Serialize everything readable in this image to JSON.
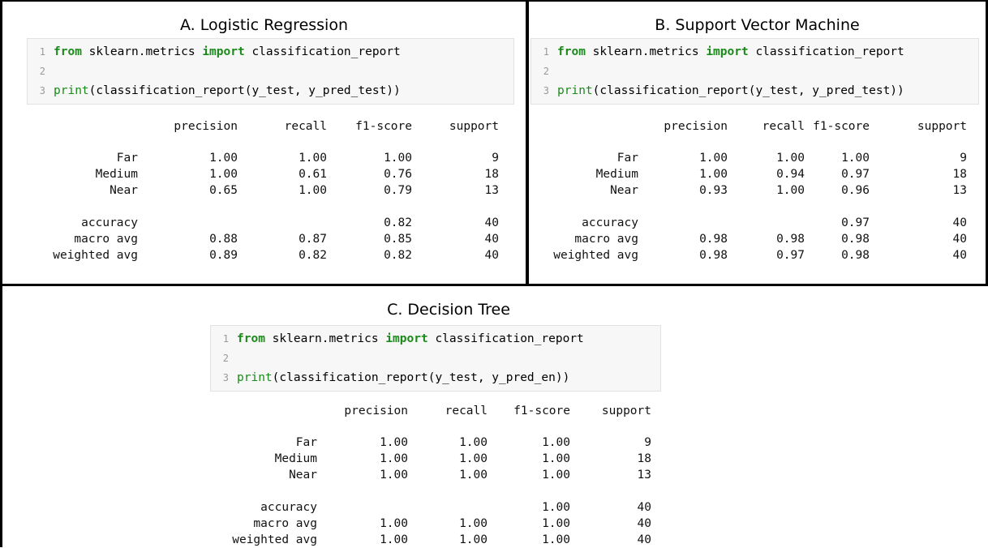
{
  "panels": [
    {
      "id": "logistic-regression",
      "title": "A. Logistic Regression",
      "code": {
        "lines": [
          {
            "num": "1",
            "parts": [
              {
                "t": "from",
                "c": "kw"
              },
              {
                "t": " sklearn.metrics ",
                "c": ""
              },
              {
                "t": "import",
                "c": "kw"
              },
              {
                "t": " classification_report",
                "c": ""
              }
            ]
          },
          {
            "num": "2",
            "parts": []
          },
          {
            "num": "3",
            "parts": [
              {
                "t": "print",
                "c": "fn"
              },
              {
                "t": "(classification_report(y_test, y_pred_test))",
                "c": ""
              }
            ]
          }
        ]
      },
      "report": {
        "headers": [
          "precision",
          "recall",
          "f1-score",
          "support"
        ],
        "rows": [
          {
            "label": "Far",
            "precision": "1.00",
            "recall": "1.00",
            "f1": "1.00",
            "support": "9"
          },
          {
            "label": "Medium",
            "precision": "1.00",
            "recall": "0.61",
            "f1": "0.76",
            "support": "18"
          },
          {
            "label": "Near",
            "precision": "0.65",
            "recall": "1.00",
            "f1": "0.79",
            "support": "13"
          },
          {
            "label": "accuracy",
            "precision": "",
            "recall": "",
            "f1": "0.82",
            "support": "40"
          },
          {
            "label": "macro avg",
            "precision": "0.88",
            "recall": "0.87",
            "f1": "0.85",
            "support": "40"
          },
          {
            "label": "weighted avg",
            "precision": "0.89",
            "recall": "0.82",
            "f1": "0.82",
            "support": "40"
          }
        ]
      }
    },
    {
      "id": "support-vector-machine",
      "title": "B. Support Vector Machine",
      "code": {
        "lines": [
          {
            "num": "1",
            "parts": [
              {
                "t": "from",
                "c": "kw"
              },
              {
                "t": " sklearn.metrics ",
                "c": ""
              },
              {
                "t": "import",
                "c": "kw"
              },
              {
                "t": " classification_report",
                "c": ""
              }
            ]
          },
          {
            "num": "2",
            "parts": []
          },
          {
            "num": "3",
            "parts": [
              {
                "t": "print",
                "c": "fn"
              },
              {
                "t": "(classification_report(y_test, y_pred_test))",
                "c": ""
              }
            ]
          }
        ]
      },
      "report": {
        "headers": [
          "precision",
          "recall",
          "f1-score",
          "support"
        ],
        "rows": [
          {
            "label": "Far",
            "precision": "1.00",
            "recall": "1.00",
            "f1": "1.00",
            "support": "9"
          },
          {
            "label": "Medium",
            "precision": "1.00",
            "recall": "0.94",
            "f1": "0.97",
            "support": "18"
          },
          {
            "label": "Near",
            "precision": "0.93",
            "recall": "1.00",
            "f1": "0.96",
            "support": "13"
          },
          {
            "label": "accuracy",
            "precision": "",
            "recall": "",
            "f1": "0.97",
            "support": "40"
          },
          {
            "label": "macro avg",
            "precision": "0.98",
            "recall": "0.98",
            "f1": "0.98",
            "support": "40"
          },
          {
            "label": "weighted avg",
            "precision": "0.98",
            "recall": "0.97",
            "f1": "0.98",
            "support": "40"
          }
        ]
      }
    },
    {
      "id": "decision-tree",
      "title": "C. Decision Tree",
      "code": {
        "lines": [
          {
            "num": "1",
            "parts": [
              {
                "t": "from",
                "c": "kw"
              },
              {
                "t": " sklearn.metrics ",
                "c": ""
              },
              {
                "t": "import",
                "c": "kw"
              },
              {
                "t": " classification_report",
                "c": ""
              }
            ]
          },
          {
            "num": "2",
            "parts": []
          },
          {
            "num": "3",
            "parts": [
              {
                "t": "print",
                "c": "fn"
              },
              {
                "t": "(classification_report(y_test, y_pred_en))",
                "c": ""
              }
            ]
          }
        ]
      },
      "report": {
        "headers": [
          "precision",
          "recall",
          "f1-score",
          "support"
        ],
        "rows": [
          {
            "label": "Far",
            "precision": "1.00",
            "recall": "1.00",
            "f1": "1.00",
            "support": "9"
          },
          {
            "label": "Medium",
            "precision": "1.00",
            "recall": "1.00",
            "f1": "1.00",
            "support": "18"
          },
          {
            "label": "Near",
            "precision": "1.00",
            "recall": "1.00",
            "f1": "1.00",
            "support": "13"
          },
          {
            "label": "accuracy",
            "precision": "",
            "recall": "",
            "f1": "1.00",
            "support": "40"
          },
          {
            "label": "macro avg",
            "precision": "1.00",
            "recall": "1.00",
            "f1": "1.00",
            "support": "40"
          },
          {
            "label": "weighted avg",
            "precision": "1.00",
            "recall": "1.00",
            "f1": "1.00",
            "support": "40"
          }
        ]
      }
    }
  ]
}
